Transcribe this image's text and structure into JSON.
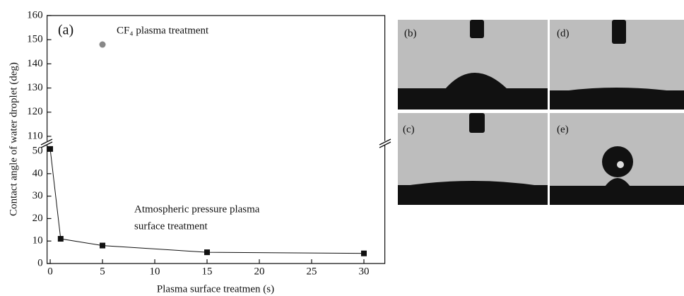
{
  "chart_data": {
    "type": "line",
    "panel_label": "(a)",
    "x_label": "Plasma surface treatmen (s)",
    "y_label": "Contact angle of water droplet (deg)",
    "annotations": [
      "CF₄ plasma treatment",
      "Atmospheric pressure plasma",
      "surface treatment"
    ],
    "xlim": [
      -0.3,
      32
    ],
    "xticks": [
      0,
      5,
      10,
      15,
      20,
      25,
      30
    ],
    "ylim": [
      0,
      53
    ],
    "yticks": [
      0,
      10,
      20,
      30,
      40,
      50
    ],
    "y2lim": [
      108,
      160
    ],
    "y2ticks": [
      110,
      120,
      130,
      140,
      150,
      160
    ],
    "series": [
      {
        "color": "#111111",
        "x": [
          0,
          1,
          5,
          15,
          30
        ],
        "values": [
          51,
          11,
          8,
          5,
          4.5
        ]
      },
      {
        "color": "#888888",
        "axis": "y2",
        "x": [
          5
        ],
        "values": [
          148
        ]
      }
    ]
  },
  "panels": [
    "(b)",
    "(d)",
    "(c)",
    "(e)"
  ]
}
